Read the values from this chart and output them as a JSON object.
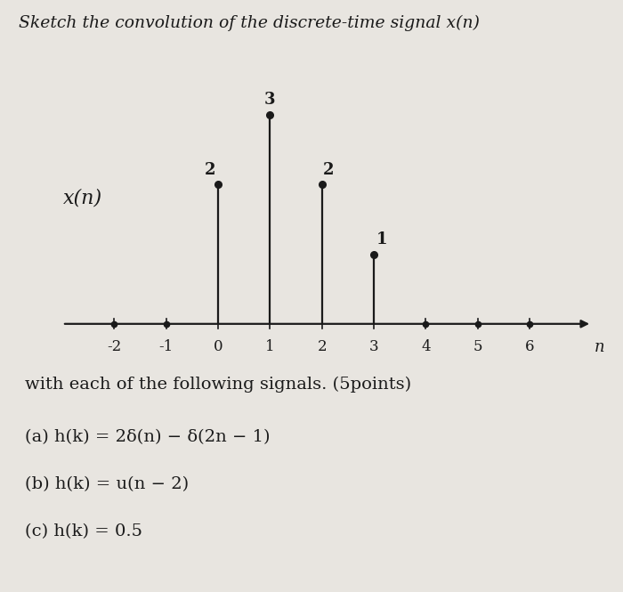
{
  "title": "Sketch the convolution of the discrete-time signal x(n)",
  "signal_label": "x(n)",
  "n_axis_label": "n",
  "stems": [
    [
      0,
      2
    ],
    [
      1,
      3
    ],
    [
      2,
      2
    ],
    [
      3,
      1
    ]
  ],
  "stem_labels": [
    [
      0,
      2,
      "2"
    ],
    [
      1,
      3,
      "3"
    ],
    [
      2,
      2,
      "2"
    ],
    [
      3,
      1,
      "1"
    ]
  ],
  "axis_ticks": [
    -2,
    -1,
    0,
    1,
    2,
    3,
    4,
    5,
    6
  ],
  "dot_positions": [
    -2,
    -1,
    4,
    5,
    6
  ],
  "x_min": -3.0,
  "x_max": 7.2,
  "y_min": -0.45,
  "y_max": 3.8,
  "background_color": "#e8e5e0",
  "text_color": "#1a1a1a",
  "line_color": "#1a1a1a",
  "footnote_lines": [
    "with each of the following signals. (5points)",
    "(a) h(k) = 2δ(n) − δ(2n − 1)",
    "(b) h(k) = u(n − 2)",
    "(c) h(k) = 0.5"
  ],
  "figsize": [
    7.0,
    6.65
  ],
  "dpi": 100
}
